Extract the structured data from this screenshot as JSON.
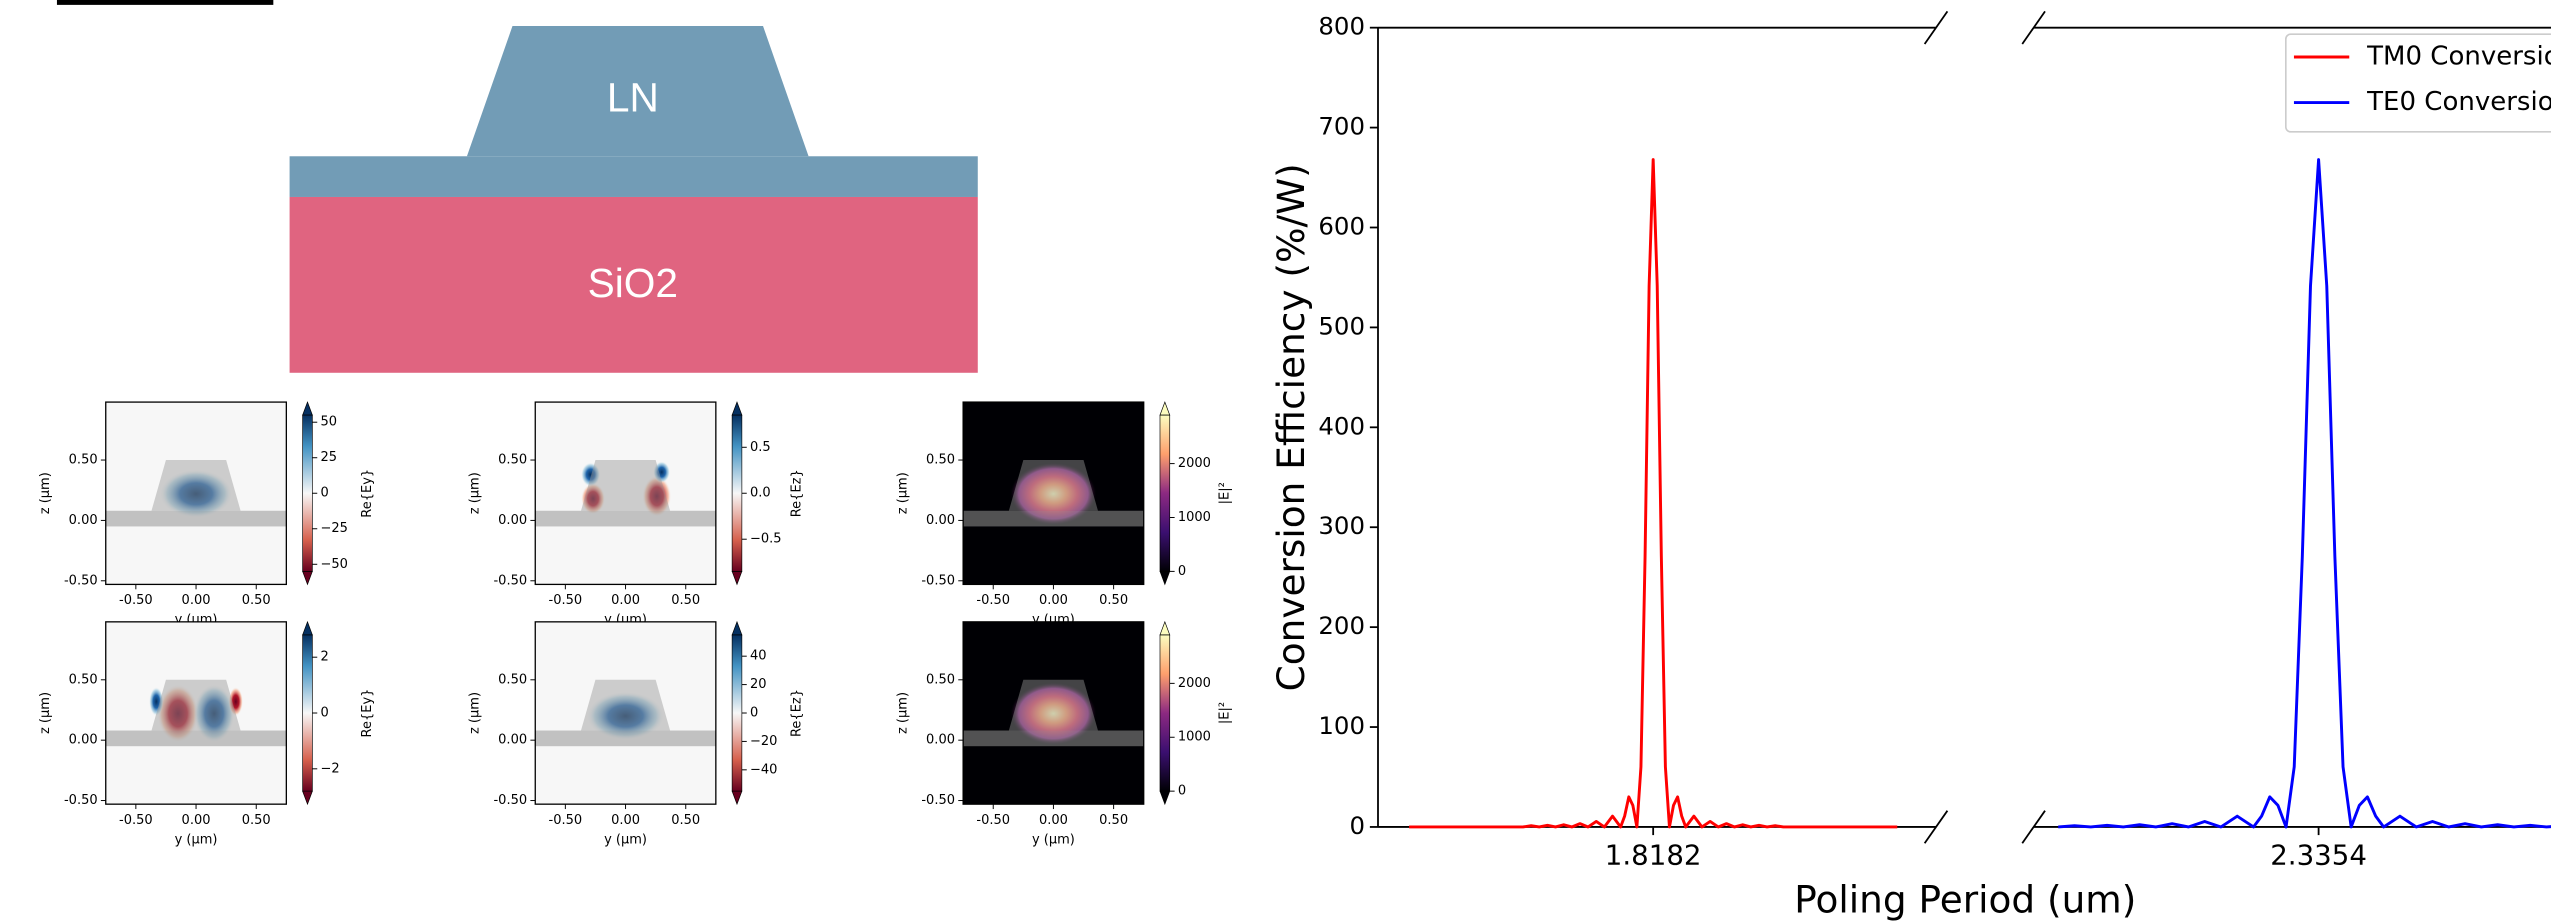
{
  "diagram": {
    "layers": [
      {
        "label": "LN"
      },
      {
        "label": "SiO2"
      }
    ]
  },
  "mode_axes": {
    "xlim": [
      -0.75,
      0.75
    ],
    "ylim": [
      -0.53,
      0.98
    ],
    "xticks": [
      {
        "value": -0.5,
        "label": "-0.50"
      },
      {
        "value": 0,
        "label": "0.00"
      },
      {
        "value": 0.5,
        "label": "0.50"
      }
    ],
    "yticks": [
      {
        "value": 0.5,
        "label": "0.50"
      },
      {
        "value": 0,
        "label": "0.00"
      },
      {
        "value": -0.5,
        "label": "-0.50"
      }
    ],
    "xlabel": "y (µm)",
    "ylabel": "z (µm)"
  },
  "mode_panels": [
    {
      "colorbar_label": "Re{Ey}",
      "cmap": "RdBu",
      "clim": [
        -55,
        55
      ],
      "colorbar_ticks": [
        50,
        25,
        0,
        {
          "value": -25,
          "label": "−25"
        },
        {
          "value": -50,
          "label": "−50"
        }
      ]
    },
    {
      "colorbar_label": "Re{Ez}",
      "cmap": "RdBu",
      "clim": [
        -0.85,
        0.85
      ],
      "colorbar_ticks": [
        0.5,
        {
          "value": 0,
          "label": "0.0"
        },
        {
          "value": -0.5,
          "label": "−0.5"
        }
      ]
    },
    {
      "colorbar_label": "|E|²",
      "cmap": "magma",
      "clim": [
        0,
        2900
      ],
      "colorbar_ticks": [
        2000,
        1000,
        0
      ]
    },
    {
      "colorbar_label": "Re{Ey}",
      "cmap": "RdBu",
      "clim": [
        -2.8,
        2.8
      ],
      "colorbar_ticks": [
        2,
        0,
        {
          "value": -2,
          "label": "−2"
        }
      ]
    },
    {
      "colorbar_label": "Re{Ez}",
      "cmap": "RdBu",
      "clim": [
        -55,
        55
      ],
      "colorbar_ticks": [
        40,
        20,
        0,
        {
          "value": -20,
          "label": "−20"
        },
        {
          "value": -40,
          "label": "−40"
        }
      ]
    },
    {
      "colorbar_label": "|E|²",
      "cmap": "magma",
      "clim": [
        0,
        2900
      ],
      "colorbar_ticks": [
        2000,
        1000,
        0
      ]
    }
  ],
  "chart_data": {
    "type": "line",
    "xlabel": "Poling Period (um)",
    "ylabel": "Conversion Efficiency (%/W)",
    "ylim": [
      0,
      800
    ],
    "yticks": [
      0,
      100,
      200,
      300,
      400,
      500,
      600,
      700,
      800
    ],
    "grid": false,
    "legend": "upper right",
    "panels": [
      {
        "xlim": [
          1.81426,
          1.82225
        ],
        "xticks": [
          1.8182
        ]
      },
      {
        "xlim": [
          2.33132,
          2.33931
        ],
        "xticks": [
          2.3354
        ]
      }
    ],
    "series": [
      {
        "name": "TM0 Conversio",
        "color": "#ff0000",
        "panel": 0,
        "x": [
          1.814705,
          1.815404,
          1.81587,
          1.816336,
          1.816453,
          1.816569,
          1.816686,
          1.816802,
          1.816919,
          1.817035,
          1.817152,
          1.817268,
          1.817385,
          1.817501,
          1.817618,
          1.817734,
          1.817792,
          1.817851,
          1.817909,
          1.817967,
          1.818025,
          1.818084,
          1.818142,
          1.8182,
          1.818258,
          1.818317,
          1.818375,
          1.818433,
          1.818491,
          1.81855,
          1.818608,
          1.818666,
          1.818783,
          1.818899,
          1.819016,
          1.819132,
          1.819249,
          1.819365,
          1.819482,
          1.819598,
          1.819715,
          1.819831,
          1.819948,
          1.820064,
          1.82053,
          1.820996,
          1.821695
        ],
        "values": [
          0,
          0,
          0,
          0,
          1.2,
          0,
          1.6,
          0,
          2.2,
          0,
          3.3,
          0,
          5.5,
          0,
          10.8,
          0,
          11.0,
          30.1,
          21.6,
          0,
          60.2,
          270.7,
          541.5,
          668,
          541.5,
          270.7,
          60.2,
          0,
          21.6,
          30.1,
          11.0,
          0,
          10.8,
          0,
          5.5,
          0,
          3.3,
          0,
          2.2,
          0,
          1.6,
          0,
          1.2,
          0,
          0,
          0,
          0
        ]
      },
      {
        "name": "TE0 Conversio",
        "color": "#0000ff",
        "panel": 1,
        "x": [
          2.331672,
          2.331905,
          2.332138,
          2.332371,
          2.332604,
          2.332837,
          2.33307,
          2.333303,
          2.333536,
          2.333769,
          2.334002,
          2.334235,
          2.334468,
          2.334585,
          2.334701,
          2.334818,
          2.334934,
          2.335051,
          2.335167,
          2.335284,
          2.3354,
          2.335517,
          2.335633,
          2.33575,
          2.335866,
          2.335983,
          2.336099,
          2.336216,
          2.336332,
          2.336565,
          2.336798,
          2.337031,
          2.337264,
          2.337497,
          2.33773,
          2.337963,
          2.338196,
          2.338429,
          2.338662,
          2.338895,
          2.339128
        ],
        "values": [
          0,
          1.2,
          0,
          1.6,
          0,
          2.2,
          0,
          3.3,
          0,
          5.5,
          0,
          10.8,
          0,
          11.0,
          30.1,
          21.6,
          0,
          60.2,
          270.7,
          541.5,
          668,
          541.5,
          270.7,
          60.2,
          0,
          21.6,
          30.1,
          11.0,
          0,
          10.8,
          0,
          5.5,
          0,
          3.3,
          0,
          2.2,
          0,
          1.6,
          0,
          1.2,
          0
        ]
      }
    ]
  }
}
